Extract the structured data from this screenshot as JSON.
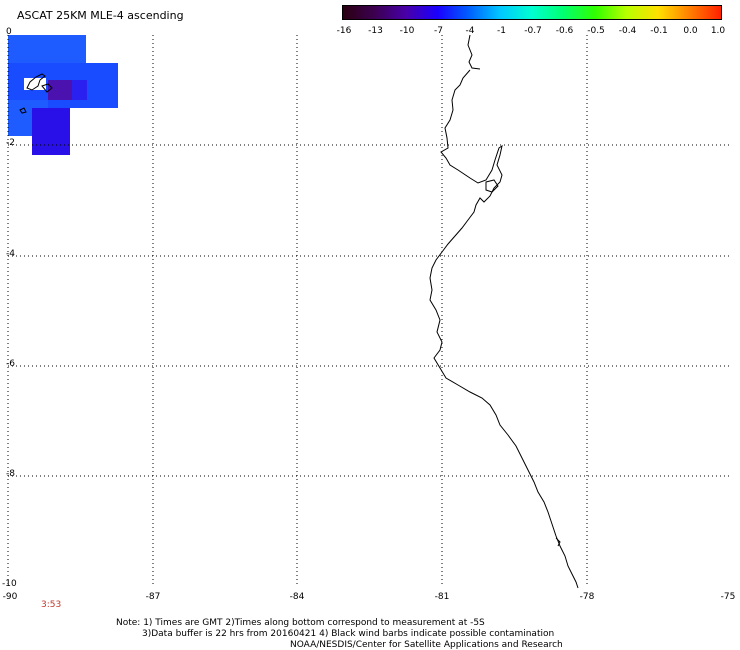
{
  "title": "ASCAT 25KM MLE-4 ascending",
  "colorbar": {
    "labels": [
      "-16",
      "-13",
      "-10",
      "-7",
      "-4",
      "-1",
      "-0.7",
      "-0.6",
      "-0.5",
      "-0.4",
      "-0.1",
      "0.0",
      "1.0"
    ],
    "colors": [
      "#2a0010",
      "#3c0050",
      "#4800a8",
      "#1a00ff",
      "#0060ff",
      "#00c8ff",
      "#00ffd0",
      "#00ff70",
      "#30ff00",
      "#b8ff00",
      "#ffe000",
      "#ff8000",
      "#ff2000"
    ]
  },
  "axes": {
    "lat_labels": [
      "0",
      "-2",
      "-4",
      "-6",
      "-8",
      "-10"
    ],
    "lon_labels": [
      "-90",
      "-87",
      "-84",
      "-81",
      "-78",
      "-75"
    ],
    "lat_range": [
      -10,
      0
    ],
    "lon_range": [
      -90,
      -75
    ],
    "grid": "dotted"
  },
  "time_label": "3:53",
  "note": {
    "line1": "Note: 1) Times are GMT 2)Times along bottom correspond to measurement at -5S",
    "line2": "3)Data buffer is 22 hrs from 20160421 4) Black wind barbs indicate possible contamination",
    "line3": "NOAA/NESDIS/Center for Satellite Applications and Research"
  },
  "swath_colors": {
    "blue": "#1e5cff",
    "dark_blue": "#2a10e8",
    "purple": "#4b12b0"
  }
}
